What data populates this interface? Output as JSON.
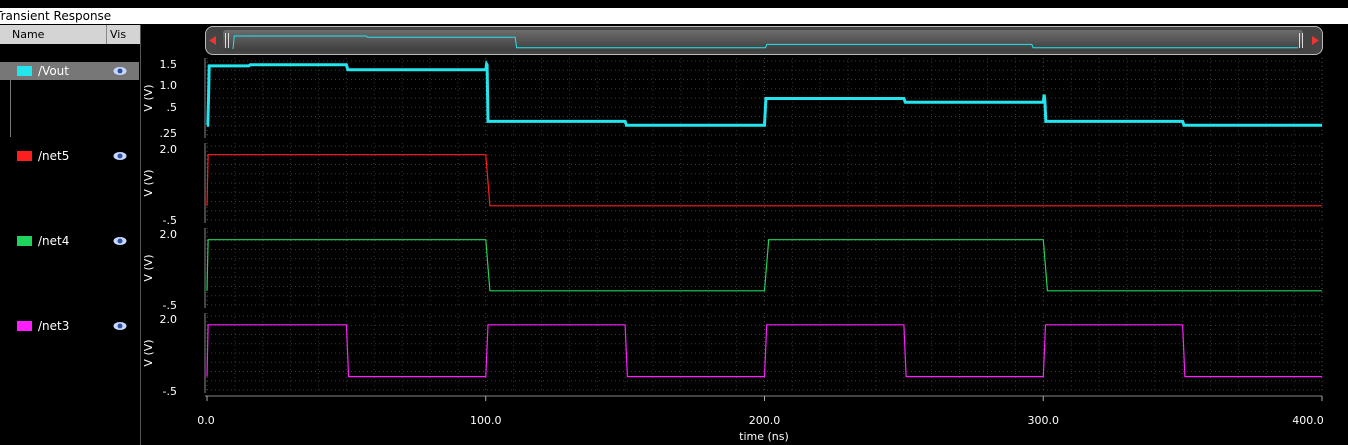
{
  "window": {
    "title": "Transient Response"
  },
  "panel": {
    "name_header": "Name",
    "vis_header": "Vis"
  },
  "signals": [
    {
      "name": "/Vout",
      "color": "#22e5ee"
    },
    {
      "name": "/net5",
      "color": "#ff1e1e"
    },
    {
      "name": "/net4",
      "color": "#1ed45a"
    },
    {
      "name": "/net3",
      "color": "#ff1eff"
    }
  ],
  "icons": {
    "visibility": "eye-icon",
    "scroll_left": "arrow-left-icon",
    "scroll_right": "arrow-right-icon"
  },
  "chart_data": {
    "type": "line",
    "title": "",
    "xlabel": "time (ns)",
    "x_ticks": [
      "0.0",
      "100.0",
      "200.0",
      "300.0",
      "400.0"
    ],
    "xlim": [
      0,
      400
    ],
    "grid": true,
    "subplots": [
      {
        "name": "/Vout",
        "ylabel": "V (V)",
        "ylim": [
          -0.25,
          1.5
        ],
        "y_ticks": [
          "1.5",
          "1.0",
          ".5",
          ".25"
        ],
        "points": [
          [
            0,
            -0.1
          ],
          [
            0.3,
            -0.1
          ],
          [
            0.6,
            0.8
          ],
          [
            0.8,
            1.45
          ],
          [
            15,
            1.45
          ],
          [
            15.5,
            1.48
          ],
          [
            50,
            1.48
          ],
          [
            50.5,
            1.35
          ],
          [
            100,
            1.35
          ],
          [
            100.3,
            1.5
          ],
          [
            100.5,
            1.48
          ],
          [
            100.8,
            0.0
          ],
          [
            150,
            0.0
          ],
          [
            150.5,
            -0.1
          ],
          [
            200,
            -0.1
          ],
          [
            200.5,
            0.6
          ],
          [
            250,
            0.6
          ],
          [
            250.5,
            0.5
          ],
          [
            300,
            0.5
          ],
          [
            300.3,
            0.7
          ],
          [
            300.6,
            0.55
          ],
          [
            300.9,
            0.0
          ],
          [
            350,
            0.0
          ],
          [
            350.5,
            -0.1
          ],
          [
            400,
            -0.1
          ]
        ]
      },
      {
        "name": "/net5",
        "ylabel": "V (V)",
        "ylim": [
          -0.5,
          2.0
        ],
        "y_ticks": [
          "2.0",
          "-.5"
        ],
        "points": [
          [
            0,
            0
          ],
          [
            0.4,
            1.8
          ],
          [
            100,
            1.8
          ],
          [
            101.5,
            0
          ],
          [
            400,
            0
          ]
        ]
      },
      {
        "name": "/net4",
        "ylabel": "V (V)",
        "ylim": [
          -0.5,
          2.0
        ],
        "y_ticks": [
          "2.0",
          "-.5"
        ],
        "points": [
          [
            0,
            0
          ],
          [
            0.4,
            1.8
          ],
          [
            100,
            1.8
          ],
          [
            101.5,
            0
          ],
          [
            200,
            0
          ],
          [
            201.5,
            1.8
          ],
          [
            300,
            1.8
          ],
          [
            301.5,
            0
          ],
          [
            400,
            0
          ]
        ]
      },
      {
        "name": "/net3",
        "ylabel": "V (V)",
        "ylim": [
          -0.5,
          2.0
        ],
        "y_ticks": [
          "2.0",
          "-.5"
        ],
        "points": [
          [
            0,
            0
          ],
          [
            0.4,
            1.8
          ],
          [
            50,
            1.8
          ],
          [
            50.8,
            0
          ],
          [
            100,
            0
          ],
          [
            100.8,
            1.8
          ],
          [
            150,
            1.8
          ],
          [
            150.8,
            0
          ],
          [
            200,
            0
          ],
          [
            200.8,
            1.8
          ],
          [
            250,
            1.8
          ],
          [
            250.8,
            0
          ],
          [
            300,
            0
          ],
          [
            300.8,
            1.8
          ],
          [
            350,
            1.8
          ],
          [
            350.8,
            0
          ],
          [
            400,
            0
          ]
        ]
      }
    ],
    "overview": {
      "name": "/Vout",
      "points": [
        [
          0,
          0
        ],
        [
          0.5,
          1.0
        ],
        [
          50,
          1.0
        ],
        [
          50.5,
          0.9
        ],
        [
          106,
          0.9
        ],
        [
          106.5,
          0.1
        ],
        [
          200,
          0.1
        ],
        [
          200.5,
          0.35
        ],
        [
          300,
          0.35
        ],
        [
          300.5,
          0.1
        ],
        [
          400,
          0.1
        ]
      ]
    }
  }
}
